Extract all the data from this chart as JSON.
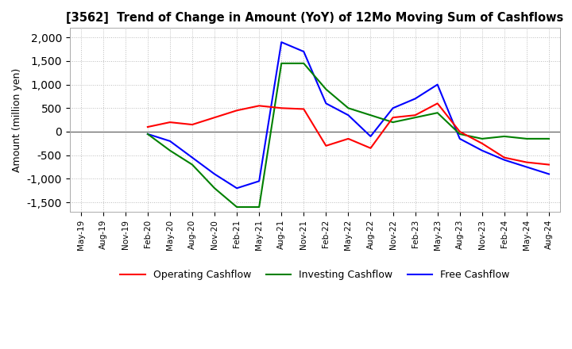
{
  "title": "[3562]  Trend of Change in Amount (YoY) of 12Mo Moving Sum of Cashflows",
  "ylabel": "Amount (million yen)",
  "ylim": [
    -1700,
    2200
  ],
  "yticks": [
    -1500,
    -1000,
    -500,
    0,
    500,
    1000,
    1500,
    2000
  ],
  "background_color": "#ffffff",
  "grid_color": "#bbbbbb",
  "x_labels": [
    "May-19",
    "Aug-19",
    "Nov-19",
    "Feb-20",
    "May-20",
    "Aug-20",
    "Nov-20",
    "Feb-21",
    "May-21",
    "Aug-21",
    "Nov-21",
    "Feb-22",
    "May-22",
    "Aug-22",
    "Nov-22",
    "Feb-23",
    "May-23",
    "Aug-23",
    "Nov-23",
    "Feb-24",
    "May-24",
    "Aug-24"
  ],
  "operating": [
    null,
    null,
    null,
    100,
    200,
    150,
    300,
    450,
    550,
    500,
    480,
    -300,
    -150,
    -350,
    300,
    350,
    600,
    0,
    -250,
    -550,
    -650,
    -700
  ],
  "investing": [
    null,
    null,
    null,
    -50,
    -400,
    -700,
    -1200,
    -1600,
    -1600,
    1450,
    1450,
    900,
    500,
    350,
    200,
    300,
    400,
    -50,
    -150,
    -100,
    -150,
    -150
  ],
  "free": [
    null,
    null,
    null,
    -50,
    -200,
    -550,
    -900,
    -1200,
    -1050,
    1900,
    1700,
    600,
    350,
    -100,
    500,
    700,
    1000,
    -150,
    -400,
    -600,
    -750,
    -900
  ],
  "operating_color": "#ff0000",
  "investing_color": "#008000",
  "free_color": "#0000ff",
  "line_width": 1.5
}
